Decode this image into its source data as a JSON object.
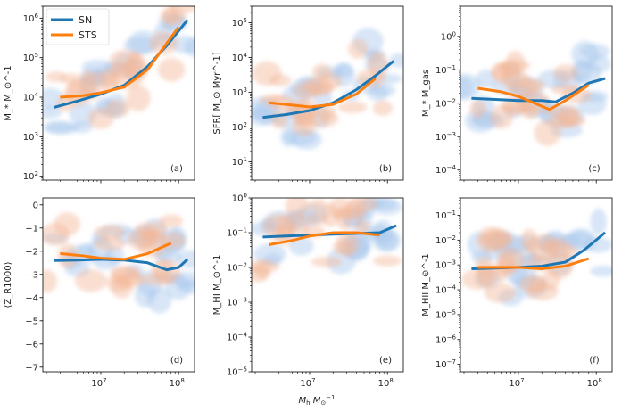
{
  "colors": {
    "sn": "#1f77b4",
    "sts": "#ff7f0e",
    "sn_cloud": "#a8c8ee",
    "sts_cloud": "#f4b89a",
    "frame": "#000000"
  },
  "legend": {
    "sn_label": "SN",
    "sts_label": "STS",
    "placement": "top-left of panel (a)"
  },
  "xlabel": "M_h M_⊙^-1",
  "chart_data": [
    {
      "type": "line",
      "panel": "(a)",
      "xscale": "log",
      "yscale": "log",
      "xlim": [
        1800000.0,
        160000000.0
      ],
      "ylim": [
        80,
        2000000.0
      ],
      "ylabel": "M_* M_⊙^-1",
      "yticks": [
        {
          "v": 100,
          "t": "10",
          "e": "2"
        },
        {
          "v": 1000,
          "t": "10",
          "e": "3"
        },
        {
          "v": 10000,
          "t": "10",
          "e": "4"
        },
        {
          "v": 100000,
          "t": "10",
          "e": "5"
        },
        {
          "v": 1000000,
          "t": "10",
          "e": "6"
        }
      ],
      "series": [
        {
          "name": "SN",
          "x": [
            2500000.0,
            5000000.0,
            10000000.0,
            20000000.0,
            40000000.0,
            70000000.0,
            130000000.0
          ],
          "y": [
            5500,
            8000,
            12000,
            20000,
            60000,
            200000,
            900000
          ]
        },
        {
          "name": "STS",
          "x": [
            3000000.0,
            6000000.0,
            10000000.0,
            20000000.0,
            40000000.0,
            60000000.0,
            100000000.0
          ],
          "y": [
            10000,
            11000,
            13000,
            18000,
            50000,
            150000,
            600000
          ]
        }
      ]
    },
    {
      "type": "line",
      "panel": "(b)",
      "xscale": "log",
      "yscale": "log",
      "xlim": [
        1800000.0,
        160000000.0
      ],
      "ylim": [
        3,
        300000.0
      ],
      "ylabel": "SFR[ M_⊙ Myr^-1]",
      "yticks": [
        {
          "v": 10,
          "t": "10",
          "e": "1"
        },
        {
          "v": 100,
          "t": "10",
          "e": "2"
        },
        {
          "v": 1000,
          "t": "10",
          "e": "3"
        },
        {
          "v": 10000,
          "t": "10",
          "e": "4"
        },
        {
          "v": 100000,
          "t": "10",
          "e": "5"
        }
      ],
      "series": [
        {
          "name": "SN",
          "x": [
            2500000.0,
            5000000.0,
            10000000.0,
            20000000.0,
            40000000.0,
            70000000.0,
            120000000.0
          ],
          "y": [
            190,
            230,
            300,
            500,
            1200,
            3000,
            8000
          ]
        },
        {
          "name": "STS",
          "x": [
            3000000.0,
            6000000.0,
            10000000.0,
            20000000.0,
            40000000.0,
            70000000.0
          ],
          "y": [
            500,
            430,
            380,
            450,
            900,
            2500
          ]
        }
      ]
    },
    {
      "type": "line",
      "panel": "(c)",
      "xscale": "log",
      "yscale": "log",
      "xlim": [
        1800000.0,
        160000000.0
      ],
      "ylim": [
        5e-05,
        8
      ],
      "ylabel": "M_* M_gas",
      "yticks": [
        {
          "v": 0.0001,
          "t": "10",
          "e": "-4"
        },
        {
          "v": 0.001,
          "t": "10",
          "e": "-3"
        },
        {
          "v": 0.01,
          "t": "10",
          "e": "-2"
        },
        {
          "v": 0.1,
          "t": "10",
          "e": "-1"
        },
        {
          "v": 1,
          "t": "10",
          "e": "0"
        }
      ],
      "series": [
        {
          "name": "SN",
          "x": [
            2500000.0,
            5000000.0,
            10000000.0,
            20000000.0,
            30000000.0,
            50000000.0,
            80000000.0,
            130000000.0
          ],
          "y": [
            0.014,
            0.013,
            0.012,
            0.012,
            0.011,
            0.02,
            0.04,
            0.055
          ]
        },
        {
          "name": "STS",
          "x": [
            3000000.0,
            6000000.0,
            10000000.0,
            18000000.0,
            25000000.0,
            40000000.0,
            80000000.0
          ],
          "y": [
            0.028,
            0.022,
            0.016,
            0.009,
            0.0065,
            0.012,
            0.035
          ]
        }
      ]
    },
    {
      "type": "line",
      "panel": "(d)",
      "xscale": "log",
      "yscale": "linear",
      "xlim": [
        1800000.0,
        160000000.0
      ],
      "ylim": [
        -7.2,
        0.3
      ],
      "ylabel": "⟨Z_R1000⟩",
      "yticks": [
        {
          "v": 0,
          "t": "0"
        },
        {
          "v": -1,
          "t": "−1"
        },
        {
          "v": -2,
          "t": "−2"
        },
        {
          "v": -3,
          "t": "−3"
        },
        {
          "v": -4,
          "t": "−4"
        },
        {
          "v": -5,
          "t": "−5"
        },
        {
          "v": -6,
          "t": "−6"
        },
        {
          "v": -7,
          "t": "−7"
        }
      ],
      "series": [
        {
          "name": "SN",
          "x": [
            2500000.0,
            5000000.0,
            10000000.0,
            20000000.0,
            40000000.0,
            70000000.0,
            100000000.0,
            130000000.0
          ],
          "y": [
            -2.4,
            -2.38,
            -2.35,
            -2.38,
            -2.5,
            -2.8,
            -2.7,
            -2.35
          ]
        },
        {
          "name": "STS",
          "x": [
            3000000.0,
            6000000.0,
            10000000.0,
            20000000.0,
            40000000.0,
            80000000.0
          ],
          "y": [
            -2.1,
            -2.2,
            -2.3,
            -2.35,
            -2.1,
            -1.65
          ]
        }
      ]
    },
    {
      "type": "line",
      "panel": "(e)",
      "xscale": "log",
      "yscale": "log",
      "xlim": [
        1800000.0,
        160000000.0
      ],
      "ylim": [
        1e-05,
        1
      ],
      "ylabel": "M_HI M_⊙^-1",
      "yticks": [
        {
          "v": 1e-05,
          "t": "10",
          "e": "-5"
        },
        {
          "v": 0.0001,
          "t": "10",
          "e": "-4"
        },
        {
          "v": 0.001,
          "t": "10",
          "e": "-3"
        },
        {
          "v": 0.01,
          "t": "10",
          "e": "-2"
        },
        {
          "v": 0.1,
          "t": "10",
          "e": "-1"
        },
        {
          "v": 1,
          "t": "10",
          "e": "0"
        }
      ],
      "series": [
        {
          "name": "SN",
          "x": [
            2500000.0,
            5000000.0,
            10000000.0,
            20000000.0,
            40000000.0,
            80000000.0,
            130000000.0
          ],
          "y": [
            0.075,
            0.08,
            0.085,
            0.09,
            0.095,
            0.1,
            0.16
          ]
        },
        {
          "name": "STS",
          "x": [
            3000000.0,
            6000000.0,
            10000000.0,
            20000000.0,
            40000000.0,
            80000000.0
          ],
          "y": [
            0.045,
            0.06,
            0.08,
            0.1,
            0.1,
            0.085
          ]
        }
      ]
    },
    {
      "type": "line",
      "panel": "(f)",
      "xscale": "log",
      "yscale": "log",
      "xlim": [
        1800000.0,
        160000000.0
      ],
      "ylim": [
        5e-08,
        0.5
      ],
      "ylabel": "M_HII M_⊙^-1",
      "yticks": [
        {
          "v": 1e-07,
          "t": "10",
          "e": "-7"
        },
        {
          "v": 1e-06,
          "t": "10",
          "e": "-6"
        },
        {
          "v": 1e-05,
          "t": "10",
          "e": "-5"
        },
        {
          "v": 0.0001,
          "t": "10",
          "e": "-4"
        },
        {
          "v": 0.001,
          "t": "10",
          "e": "-3"
        },
        {
          "v": 0.01,
          "t": "10",
          "e": "-2"
        },
        {
          "v": 0.1,
          "t": "10",
          "e": "-1"
        }
      ],
      "series": [
        {
          "name": "SN",
          "x": [
            2500000.0,
            5000000.0,
            10000000.0,
            20000000.0,
            40000000.0,
            70000000.0,
            130000000.0
          ],
          "y": [
            0.0007,
            0.00075,
            0.0008,
            0.0009,
            0.0013,
            0.004,
            0.02
          ]
        },
        {
          "name": "STS",
          "x": [
            3000000.0,
            6000000.0,
            10000000.0,
            20000000.0,
            40000000.0,
            80000000.0
          ],
          "y": [
            0.0008,
            0.0008,
            0.0008,
            0.0007,
            0.0009,
            0.0018
          ]
        }
      ]
    }
  ],
  "xticks": [
    {
      "v": 10000000,
      "t": "10",
      "e": "7"
    },
    {
      "v": 100000000,
      "t": "10",
      "e": "8"
    }
  ]
}
